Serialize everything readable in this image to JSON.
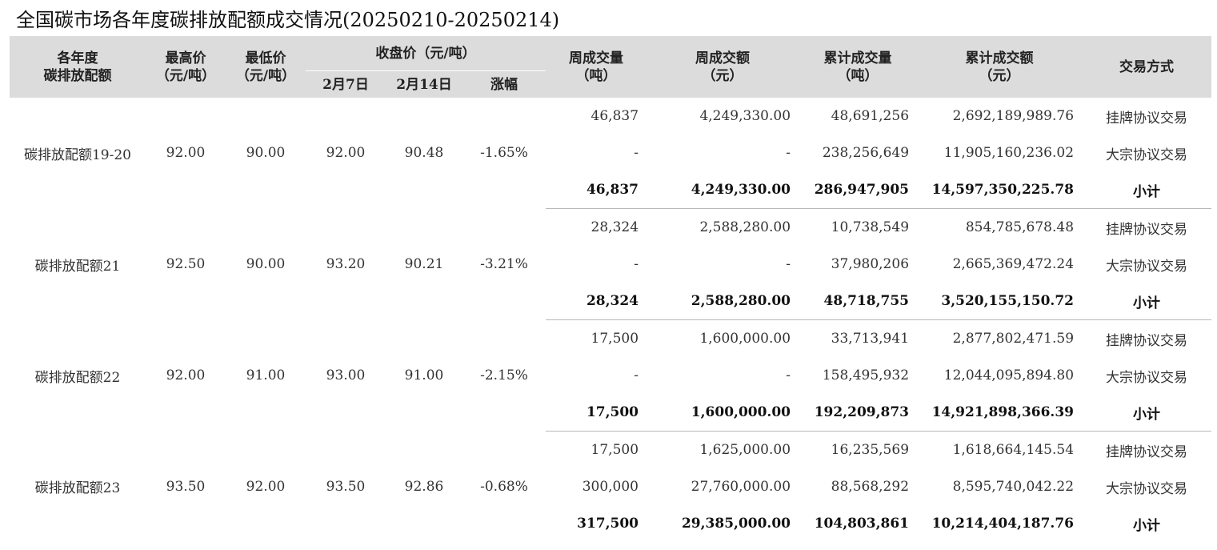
{
  "title": "全国碳市场各年度碳排放配额成交情况(20250210-20250214)",
  "headers": {
    "category": [
      "各年度",
      "碳排放配额"
    ],
    "high": [
      "最高价",
      "（元/吨）"
    ],
    "low": [
      "最低价",
      "（元/吨）"
    ],
    "close_group": "收盘价（元/吨）",
    "close_feb7": "2月7日",
    "close_feb14": "2月14日",
    "change": "涨幅",
    "weekly_volume": [
      "周成交量",
      "（吨）"
    ],
    "weekly_amount": [
      "周成交额",
      "（元）"
    ],
    "cum_volume": [
      "累计成交量",
      "（吨）"
    ],
    "cum_amount": [
      "累计成交额",
      "（元）"
    ],
    "method": "交易方式"
  },
  "groups": [
    {
      "name": "碳排放配额19-20",
      "high": "92.00",
      "low": "90.00",
      "close_feb7": "92.00",
      "close_feb14": "90.48",
      "change": "-1.65%",
      "rows": [
        {
          "weekly_volume": "46,837",
          "weekly_amount": "4,249,330.00",
          "cum_volume": "48,691,256",
          "cum_amount": "2,692,189,989.76",
          "method": "挂牌协议交易"
        },
        {
          "weekly_volume": "-",
          "weekly_amount": "-",
          "cum_volume": "238,256,649",
          "cum_amount": "11,905,160,236.02",
          "method": "大宗协议交易"
        },
        {
          "weekly_volume": "46,837",
          "weekly_amount": "4,249,330.00",
          "cum_volume": "286,947,905",
          "cum_amount": "14,597,350,225.78",
          "method": "小计"
        }
      ]
    },
    {
      "name": "碳排放配额21",
      "high": "92.50",
      "low": "90.00",
      "close_feb7": "93.20",
      "close_feb14": "90.21",
      "change": "-3.21%",
      "rows": [
        {
          "weekly_volume": "28,324",
          "weekly_amount": "2,588,280.00",
          "cum_volume": "10,738,549",
          "cum_amount": "854,785,678.48",
          "method": "挂牌协议交易"
        },
        {
          "weekly_volume": "-",
          "weekly_amount": "-",
          "cum_volume": "37,980,206",
          "cum_amount": "2,665,369,472.24",
          "method": "大宗协议交易"
        },
        {
          "weekly_volume": "28,324",
          "weekly_amount": "2,588,280.00",
          "cum_volume": "48,718,755",
          "cum_amount": "3,520,155,150.72",
          "method": "小计"
        }
      ]
    },
    {
      "name": "碳排放配额22",
      "high": "92.00",
      "low": "91.00",
      "close_feb7": "93.00",
      "close_feb14": "91.00",
      "change": "-2.15%",
      "rows": [
        {
          "weekly_volume": "17,500",
          "weekly_amount": "1,600,000.00",
          "cum_volume": "33,713,941",
          "cum_amount": "2,877,802,471.59",
          "method": "挂牌协议交易"
        },
        {
          "weekly_volume": "-",
          "weekly_amount": "-",
          "cum_volume": "158,495,932",
          "cum_amount": "12,044,095,894.80",
          "method": "大宗协议交易"
        },
        {
          "weekly_volume": "17,500",
          "weekly_amount": "1,600,000.00",
          "cum_volume": "192,209,873",
          "cum_amount": "14,921,898,366.39",
          "method": "小计"
        }
      ]
    },
    {
      "name": "碳排放配额23",
      "high": "93.50",
      "low": "92.00",
      "close_feb7": "93.50",
      "close_feb14": "92.86",
      "change": "-0.68%",
      "rows": [
        {
          "weekly_volume": "17,500",
          "weekly_amount": "1,625,000.00",
          "cum_volume": "16,235,569",
          "cum_amount": "1,618,664,145.54",
          "method": "挂牌协议交易"
        },
        {
          "weekly_volume": "300,000",
          "weekly_amount": "27,760,000.00",
          "cum_volume": "88,568,292",
          "cum_amount": "8,595,740,042.22",
          "method": "大宗协议交易"
        },
        {
          "weekly_volume": "317,500",
          "weekly_amount": "29,385,000.00",
          "cum_volume": "104,803,861",
          "cum_amount": "10,214,404,187.76",
          "method": "小计"
        }
      ]
    }
  ]
}
